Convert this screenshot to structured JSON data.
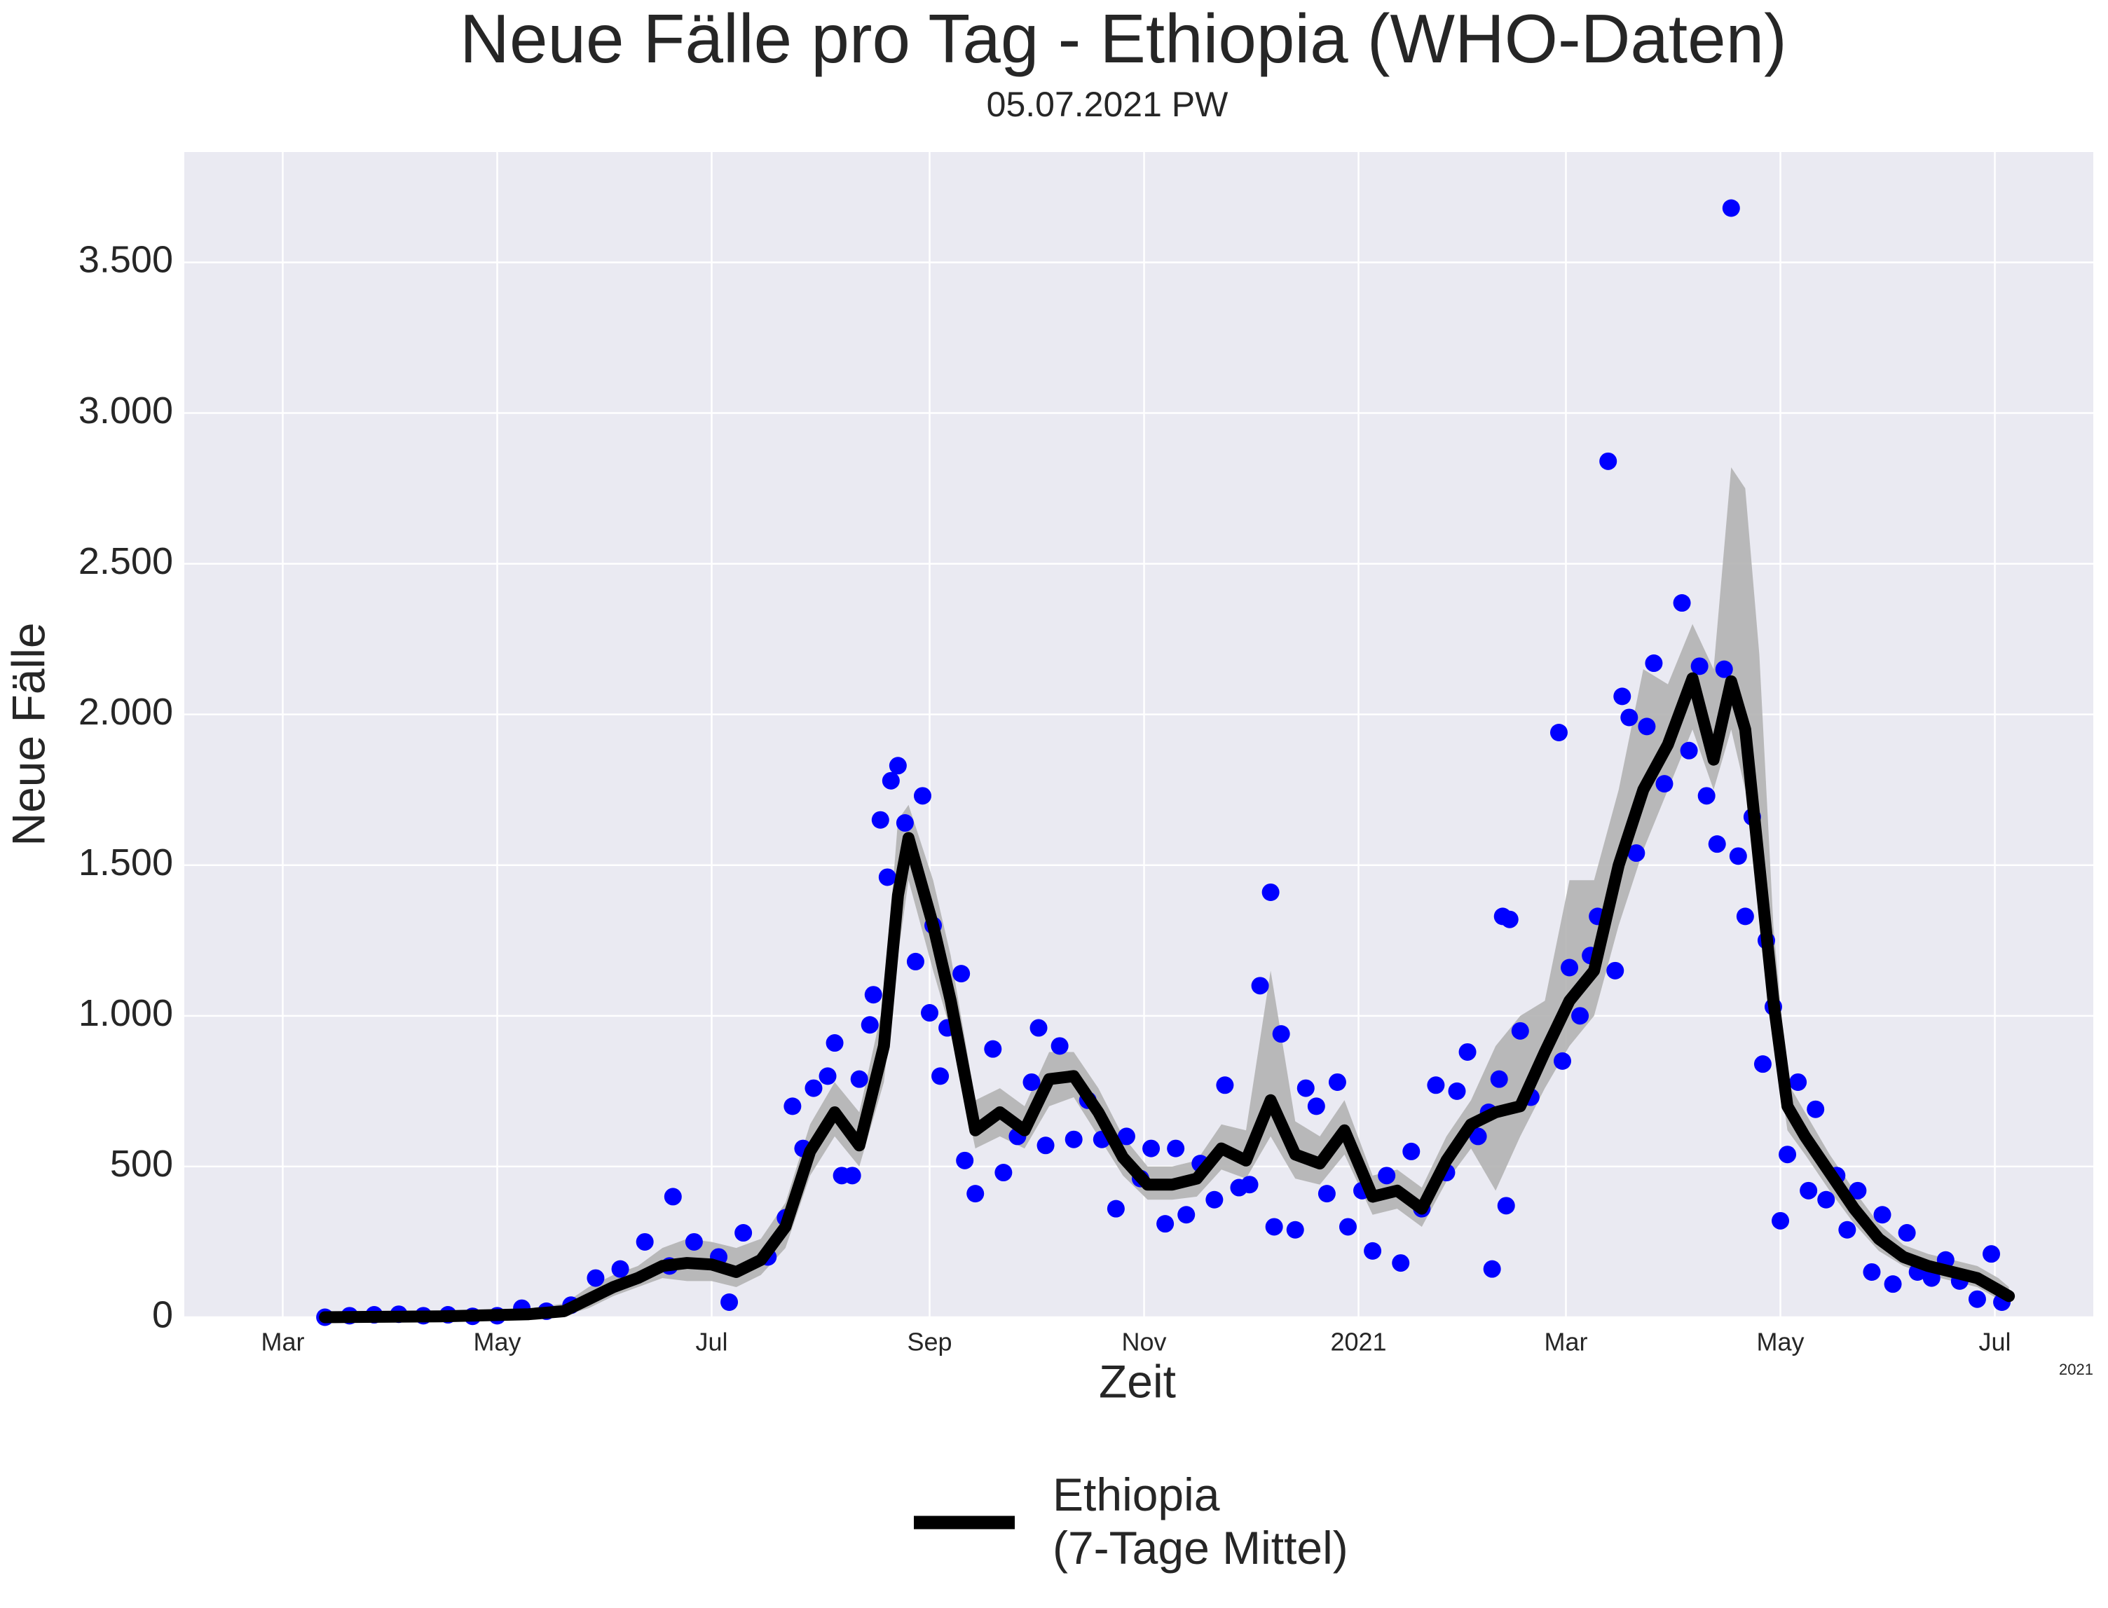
{
  "chart_data": {
    "type": "line",
    "title": "Neue Fälle pro Tag - Ethiopia (WHO-Daten)",
    "subtitle": "05.07.2021 PW",
    "x_label": "Zeit",
    "y_label": "Neue Fälle",
    "x_offset_label": "2021",
    "xlim": [
      "2020-02-02",
      "2021-07-29"
    ],
    "ylim": [
      0,
      3866
    ],
    "xticks": [
      {
        "value": "2020-03-01",
        "label": "Mar"
      },
      {
        "value": "2020-05-01",
        "label": "May"
      },
      {
        "value": "2020-07-01",
        "label": "Jul"
      },
      {
        "value": "2020-09-01",
        "label": "Sep"
      },
      {
        "value": "2020-11-01",
        "label": "Nov"
      },
      {
        "value": "2021-01-01",
        "label": "2021"
      },
      {
        "value": "2021-03-01",
        "label": "Mar"
      },
      {
        "value": "2021-05-01",
        "label": "May"
      },
      {
        "value": "2021-07-01",
        "label": "Jul"
      }
    ],
    "yticks": [
      0,
      500,
      {
        "value": 1000,
        "label": "1.000"
      },
      {
        "value": 1500,
        "label": "1.500"
      },
      {
        "value": 2000,
        "label": "2.000"
      },
      {
        "value": 2500,
        "label": "2.500"
      },
      {
        "value": 3000,
        "label": "3.000"
      },
      {
        "value": 3500,
        "label": "3.500"
      }
    ],
    "grid": true,
    "legend": "bottom",
    "series": [
      {
        "name": "Ethiopia\n(7-Tage Mittel)",
        "type": "line",
        "color": "#000000",
        "band_color": "#b3b3b3",
        "x": [
          "2020-03-13",
          "2020-04-15",
          "2020-05-10",
          "2020-05-20",
          "2020-05-27",
          "2020-06-03",
          "2020-06-10",
          "2020-06-17",
          "2020-06-24",
          "2020-07-01",
          "2020-07-08",
          "2020-07-15",
          "2020-07-22",
          "2020-07-29",
          "2020-08-05",
          "2020-08-12",
          "2020-08-19",
          "2020-08-23",
          "2020-08-26",
          "2020-09-02",
          "2020-09-07",
          "2020-09-14",
          "2020-09-21",
          "2020-09-28",
          "2020-10-05",
          "2020-10-12",
          "2020-10-19",
          "2020-10-26",
          "2020-11-02",
          "2020-11-09",
          "2020-11-16",
          "2020-11-23",
          "2020-11-30",
          "2020-12-07",
          "2020-12-14",
          "2020-12-21",
          "2020-12-28",
          "2021-01-05",
          "2021-01-12",
          "2021-01-19",
          "2021-01-26",
          "2021-02-02",
          "2021-02-09",
          "2021-02-16",
          "2021-02-23",
          "2021-03-02",
          "2021-03-09",
          "2021-03-16",
          "2021-03-23",
          "2021-03-30",
          "2021-04-06",
          "2021-04-12",
          "2021-04-17",
          "2021-04-21",
          "2021-04-25",
          "2021-04-29",
          "2021-05-03",
          "2021-05-08",
          "2021-05-15",
          "2021-05-22",
          "2021-05-29",
          "2021-06-05",
          "2021-06-12",
          "2021-06-19",
          "2021-06-26",
          "2021-07-02",
          "2021-07-05"
        ],
        "values": [
          0,
          3,
          10,
          20,
          60,
          100,
          130,
          170,
          180,
          175,
          150,
          190,
          300,
          550,
          680,
          570,
          900,
          1400,
          1590,
          1300,
          1050,
          620,
          680,
          620,
          790,
          800,
          680,
          530,
          440,
          440,
          460,
          560,
          520,
          720,
          540,
          510,
          620,
          400,
          420,
          360,
          520,
          640,
          680,
          700,
          880,
          1050,
          1150,
          1500,
          1750,
          1900,
          2120,
          1850,
          2110,
          1950,
          1500,
          1050,
          700,
          600,
          480,
          360,
          260,
          200,
          170,
          150,
          130,
          90,
          70
        ],
        "band_low": [
          0,
          0,
          0,
          5,
          30,
          70,
          100,
          130,
          120,
          120,
          100,
          140,
          230,
          470,
          600,
          500,
          780,
          1200,
          1450,
          1150,
          950,
          560,
          600,
          560,
          700,
          730,
          600,
          470,
          390,
          390,
          400,
          490,
          460,
          600,
          460,
          440,
          540,
          340,
          360,
          300,
          450,
          560,
          420,
          600,
          760,
          900,
          1000,
          1300,
          1550,
          1750,
          1950,
          1750,
          1950,
          1750,
          1350,
          950,
          620,
          540,
          420,
          310,
          220,
          170,
          140,
          120,
          100,
          60,
          50
        ],
        "band_high": [
          5,
          10,
          30,
          45,
          100,
          140,
          170,
          230,
          260,
          250,
          230,
          260,
          380,
          640,
          780,
          680,
          1050,
          1650,
          1700,
          1450,
          1200,
          720,
          760,
          700,
          880,
          880,
          760,
          600,
          500,
          500,
          520,
          640,
          620,
          1150,
          650,
          600,
          720,
          470,
          490,
          430,
          600,
          720,
          900,
          1000,
          1050,
          1450,
          1450,
          1750,
          2150,
          2100,
          2300,
          2150,
          2820,
          2750,
          2200,
          1300,
          780,
          680,
          540,
          420,
          310,
          240,
          210,
          190,
          170,
          130,
          100
        ]
      },
      {
        "type": "scatter",
        "color": "#0000ff",
        "x": [
          "2020-03-13",
          "2020-03-20",
          "2020-03-27",
          "2020-04-03",
          "2020-04-10",
          "2020-04-17",
          "2020-04-24",
          "2020-05-01",
          "2020-05-08",
          "2020-05-15",
          "2020-05-22",
          "2020-05-29",
          "2020-06-05",
          "2020-06-12",
          "2020-06-19",
          "2020-06-20",
          "2020-06-26",
          "2020-07-03",
          "2020-07-06",
          "2020-07-10",
          "2020-07-17",
          "2020-07-22",
          "2020-07-24",
          "2020-07-27",
          "2020-07-30",
          "2020-08-03",
          "2020-08-05",
          "2020-08-07",
          "2020-08-10",
          "2020-08-12",
          "2020-08-15",
          "2020-08-16",
          "2020-08-18",
          "2020-08-20",
          "2020-08-21",
          "2020-08-23",
          "2020-08-25",
          "2020-08-28",
          "2020-08-30",
          "2020-09-01",
          "2020-09-02",
          "2020-09-04",
          "2020-09-06",
          "2020-09-10",
          "2020-09-11",
          "2020-09-14",
          "2020-09-19",
          "2020-09-22",
          "2020-09-26",
          "2020-09-30",
          "2020-10-02",
          "2020-10-04",
          "2020-10-08",
          "2020-10-12",
          "2020-10-16",
          "2020-10-20",
          "2020-10-24",
          "2020-10-27",
          "2020-10-31",
          "2020-11-03",
          "2020-11-07",
          "2020-11-10",
          "2020-11-13",
          "2020-11-17",
          "2020-11-21",
          "2020-11-24",
          "2020-11-28",
          "2020-12-01",
          "2020-12-04",
          "2020-12-07",
          "2020-12-08",
          "2020-12-10",
          "2020-12-14",
          "2020-12-17",
          "2020-12-20",
          "2020-12-23",
          "2020-12-26",
          "2020-12-29",
          "2021-01-02",
          "2021-01-05",
          "2021-01-09",
          "2021-01-13",
          "2021-01-16",
          "2021-01-19",
          "2021-01-23",
          "2021-01-26",
          "2021-01-29",
          "2021-02-01",
          "2021-02-04",
          "2021-02-07",
          "2021-02-08",
          "2021-02-10",
          "2021-02-11",
          "2021-02-12",
          "2021-02-13",
          "2021-02-16",
          "2021-02-19",
          "2021-02-27",
          "2021-02-28",
          "2021-03-02",
          "2021-03-05",
          "2021-03-08",
          "2021-03-10",
          "2021-03-13",
          "2021-03-15",
          "2021-03-17",
          "2021-03-19",
          "2021-03-21",
          "2021-03-24",
          "2021-03-26",
          "2021-03-29",
          "2021-04-03",
          "2021-04-05",
          "2021-04-08",
          "2021-04-10",
          "2021-04-13",
          "2021-04-15",
          "2021-04-17",
          "2021-04-19",
          "2021-04-21",
          "2021-04-23",
          "2021-04-26",
          "2021-04-27",
          "2021-04-29",
          "2021-05-01",
          "2021-05-03",
          "2021-05-06",
          "2021-05-09",
          "2021-05-11",
          "2021-05-14",
          "2021-05-17",
          "2021-05-20",
          "2021-05-23",
          "2021-05-27",
          "2021-05-30",
          "2021-06-02",
          "2021-06-06",
          "2021-06-09",
          "2021-06-13",
          "2021-06-17",
          "2021-06-21",
          "2021-06-26",
          "2021-06-30",
          "2021-07-03"
        ],
        "values": [
          0,
          5,
          8,
          10,
          5,
          8,
          3,
          5,
          30,
          20,
          40,
          130,
          160,
          250,
          170,
          400,
          250,
          200,
          50,
          280,
          200,
          330,
          700,
          560,
          760,
          800,
          910,
          470,
          470,
          790,
          970,
          1070,
          1650,
          1460,
          1780,
          1830,
          1640,
          1180,
          1730,
          1010,
          1300,
          800,
          960,
          1140,
          520,
          410,
          890,
          480,
          600,
          780,
          960,
          570,
          900,
          590,
          720,
          590,
          360,
          600,
          460,
          560,
          310,
          560,
          340,
          510,
          390,
          770,
          430,
          440,
          1100,
          1410,
          300,
          940,
          290,
          760,
          700,
          410,
          780,
          300,
          420,
          220,
          470,
          180,
          550,
          360,
          770,
          480,
          750,
          880,
          600,
          680,
          160,
          790,
          1330,
          370,
          1320,
          950,
          730,
          1940,
          850,
          1160,
          1000,
          1200,
          1330,
          2840,
          1150,
          2060,
          1990,
          1540,
          1960,
          2170,
          1770,
          2370,
          1880,
          2160,
          1730,
          1570,
          2150,
          3680,
          1530,
          1330,
          1660,
          840,
          1250,
          1030,
          320,
          540,
          780,
          420,
          690,
          390,
          470,
          290,
          420,
          150,
          340,
          110,
          280,
          150,
          130,
          190,
          120,
          60,
          210,
          50
        ]
      }
    ]
  }
}
